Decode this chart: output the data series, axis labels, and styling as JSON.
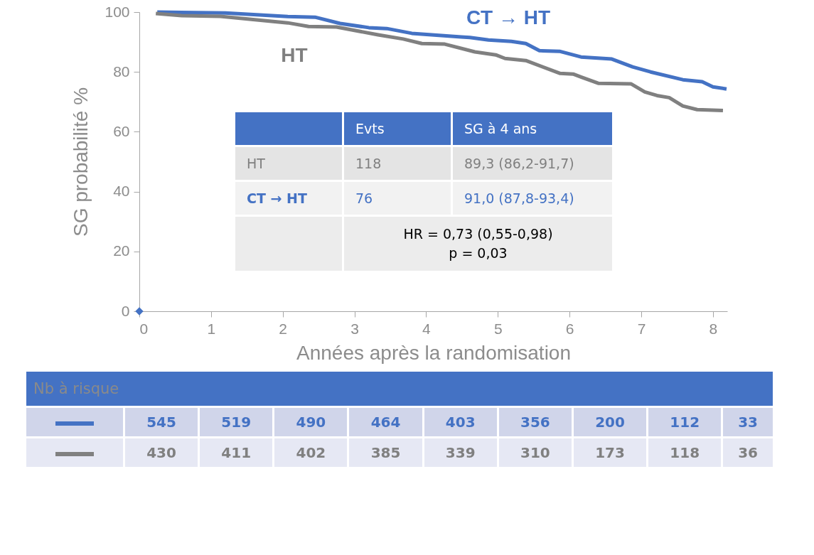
{
  "chart_data": {
    "type": "line",
    "xlabel": "Années après la randomisation",
    "ylabel": "SG probabilité %",
    "xlim": [
      0,
      8.2
    ],
    "xticks": [
      0,
      1,
      2,
      3,
      4,
      5,
      6,
      7,
      8
    ],
    "ylim": [
      0,
      100
    ],
    "yticks": [
      0,
      20,
      40,
      60,
      80,
      100
    ],
    "line_style": "solid",
    "series": [
      {
        "name": "CT → HT",
        "color": "#4472c4",
        "x": [
          0.25,
          1.2,
          2.07,
          2.45,
          2.8,
          3.2,
          3.45,
          3.8,
          4.49,
          4.61,
          4.87,
          5.19,
          5.39,
          5.58,
          5.86,
          6.16,
          6.59,
          6.88,
          7.13,
          7.58,
          7.85,
          8.0,
          8.19
        ],
        "values": [
          100,
          99.7,
          98.5,
          98.3,
          96.2,
          94.8,
          94.5,
          92.9,
          91.7,
          91.5,
          90.7,
          90.2,
          89.5,
          87.1,
          86.9,
          85,
          84.3,
          81.7,
          80,
          77.4,
          76.7,
          75,
          74.3
        ]
      },
      {
        "name": "HT",
        "color": "#808080",
        "x": [
          0.23,
          0.59,
          1.13,
          2.07,
          2.36,
          2.75,
          3.33,
          3.68,
          3.94,
          4.26,
          4.68,
          4.97,
          5.1,
          5.39,
          5.87,
          6.05,
          6.16,
          6.4,
          6.86,
          7.05,
          7.22,
          7.39,
          7.58,
          7.78,
          8.14
        ],
        "values": [
          99.5,
          98.8,
          98.6,
          96.4,
          95.2,
          95,
          92.4,
          91,
          89.5,
          89.3,
          86.7,
          85.7,
          84.5,
          83.8,
          79.5,
          79.3,
          78.3,
          76.2,
          76,
          73.3,
          72.1,
          71.4,
          68.6,
          67.4,
          67.1
        ]
      },
      {
        "type": "scatter",
        "marker": "diamond",
        "color": "#4472c4",
        "x": [
          0
        ],
        "values": [
          0
        ]
      }
    ],
    "annotations": [
      "Evts",
      "SG à 4 ans",
      "HT",
      "118",
      "89,3 (86,2-91,7)",
      "CT → HT",
      "76",
      "91,0 (87,8-93,4)",
      "HR = 0,73 (0,55-0,98)",
      "p = 0,03",
      "Nb à risque",
      "545",
      "519",
      "490",
      "464",
      "403",
      "356",
      "200",
      "112",
      "33",
      "430",
      "411",
      "402",
      "385",
      "339",
      "310",
      "173",
      "118",
      "36"
    ]
  }
}
